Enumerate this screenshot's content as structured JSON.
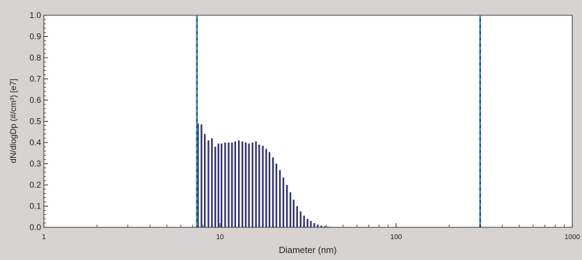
{
  "chart_data": {
    "type": "bar",
    "title": "",
    "xlabel": "Diameter (nm)",
    "ylabel": "dN/dlogDp (#/cm³) [e7]",
    "xscale": "log",
    "xlim": [
      1,
      1000
    ],
    "ylim": [
      0,
      1.0
    ],
    "x_ticks": [
      "1",
      "10",
      "100",
      "1000"
    ],
    "y_ticks": [
      "0.0",
      "0.1",
      "0.2",
      "0.3",
      "0.4",
      "0.5",
      "0.6",
      "0.7",
      "0.8",
      "0.9",
      "1.0"
    ],
    "grid": false,
    "legend": "none",
    "cursor_lines": [
      7.4,
      300
    ],
    "series": [
      {
        "color": "#2e3170",
        "x": [
          7.5,
          7.85,
          8.2,
          8.6,
          9.0,
          9.4,
          9.8,
          10.2,
          10.7,
          11.2,
          11.7,
          12.2,
          12.8,
          13.4,
          14.0,
          14.6,
          15.3,
          16.0,
          16.7,
          17.5,
          18.3,
          19.1,
          20.0,
          20.9,
          21.9,
          22.9,
          24.0,
          25.1,
          26.2,
          27.4,
          28.7,
          30.0,
          31.4,
          32.8,
          34.3,
          35.9,
          37.6,
          39.3,
          41.1,
          43.0
        ],
        "values": [
          0.49,
          0.485,
          0.44,
          0.41,
          0.42,
          0.38,
          0.395,
          0.395,
          0.4,
          0.4,
          0.4,
          0.405,
          0.41,
          0.405,
          0.4,
          0.395,
          0.4,
          0.405,
          0.39,
          0.385,
          0.37,
          0.355,
          0.33,
          0.3,
          0.27,
          0.235,
          0.2,
          0.165,
          0.13,
          0.1,
          0.075,
          0.055,
          0.04,
          0.03,
          0.02,
          0.013,
          0.008,
          0.005,
          0.003,
          0.002
        ]
      }
    ]
  }
}
